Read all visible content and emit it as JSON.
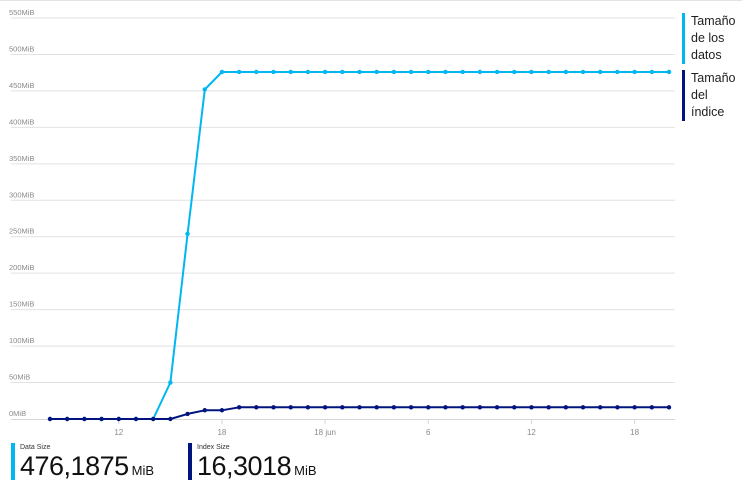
{
  "chart_data": {
    "type": "line",
    "ylim": [
      0,
      550
    ],
    "y_ticks": [
      "0MiB",
      "50MiB",
      "100MiB",
      "150MiB",
      "200MiB",
      "250MiB",
      "300MiB",
      "350MiB",
      "400MiB",
      "450MiB",
      "500MiB",
      "550MiB"
    ],
    "x_ticks": [
      {
        "label": "12",
        "x": 4
      },
      {
        "label": "18",
        "x": 10
      },
      {
        "label": "18 jun",
        "x": 16
      },
      {
        "label": "6",
        "x": 22
      },
      {
        "label": "12",
        "x": 28
      },
      {
        "label": "18",
        "x": 34
      }
    ],
    "xlim": [
      -1,
      36.8
    ],
    "grid": true,
    "legend": "right",
    "series": [
      {
        "name": "Tamaño de los datos",
        "color": "#00b7f1",
        "x": [
          0,
          1,
          2,
          3,
          4,
          5,
          6,
          7,
          8,
          9,
          10,
          11,
          12,
          13,
          14,
          15,
          16,
          17,
          18,
          19,
          20,
          21,
          22,
          23,
          24,
          25,
          26,
          27,
          28,
          29,
          30,
          31,
          32,
          33,
          34,
          35,
          36
        ],
        "values": [
          0,
          0,
          0,
          0,
          0,
          0,
          0,
          50,
          254,
          452,
          476,
          476,
          476,
          476,
          476,
          476,
          476,
          476,
          476,
          476,
          476,
          476,
          476,
          476,
          476,
          476,
          476,
          476,
          476,
          476,
          476,
          476,
          476,
          476,
          476,
          476,
          476
        ]
      },
      {
        "name": "Tamaño del índice",
        "color": "#00137f",
        "x": [
          0,
          1,
          2,
          3,
          4,
          5,
          6,
          7,
          8,
          9,
          10,
          11,
          12,
          13,
          14,
          15,
          16,
          17,
          18,
          19,
          20,
          21,
          22,
          23,
          24,
          25,
          26,
          27,
          28,
          29,
          30,
          31,
          32,
          33,
          34,
          35,
          36
        ],
        "values": [
          0,
          0,
          0,
          0,
          0,
          0,
          0,
          0,
          7,
          12,
          12,
          16,
          16,
          16,
          16,
          16,
          16,
          16,
          16,
          16,
          16,
          16,
          16,
          16,
          16,
          16,
          16,
          16,
          16,
          16,
          16,
          16,
          16,
          16,
          16,
          16,
          16
        ]
      }
    ]
  },
  "legend": {
    "items": [
      {
        "label": "Tamaño de los datos",
        "color": "#00b7f1"
      },
      {
        "label": "Tamaño del índice",
        "color": "#00137f"
      }
    ]
  },
  "summary": [
    {
      "label": "Data Size",
      "value": "476,1875",
      "unit": "MiB",
      "color": "#00b7f1"
    },
    {
      "label": "Index Size",
      "value": "16,3018",
      "unit": "MiB",
      "color": "#00137f"
    }
  ]
}
